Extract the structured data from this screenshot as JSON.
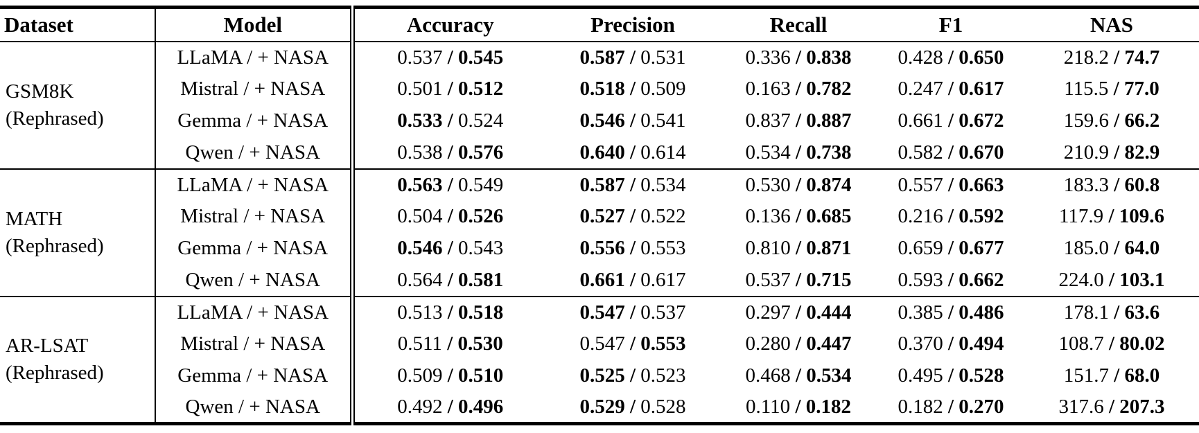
{
  "table": {
    "separator": "/",
    "columns": [
      {
        "label": "Dataset"
      },
      {
        "label": "Model"
      },
      {
        "label": "Accuracy"
      },
      {
        "label": "Precision"
      },
      {
        "label": "Recall"
      },
      {
        "label": "F1"
      },
      {
        "label": "NAS"
      }
    ],
    "groups": [
      {
        "dataset_line1": "GSM8K",
        "dataset_line2": "(Rephrased)",
        "rows": [
          {
            "model": "LLaMA / + NASA",
            "cells": [
              [
                "0.537",
                "0.545",
                "second"
              ],
              [
                "0.587",
                "0.531",
                "first"
              ],
              [
                "0.336",
                "0.838",
                "second"
              ],
              [
                "0.428",
                "0.650",
                "second"
              ],
              [
                "218.2",
                "74.7",
                "second"
              ]
            ]
          },
          {
            "model": "Mistral / + NASA",
            "cells": [
              [
                "0.501",
                "0.512",
                "second"
              ],
              [
                "0.518",
                "0.509",
                "first"
              ],
              [
                "0.163",
                "0.782",
                "second"
              ],
              [
                "0.247",
                "0.617",
                "second"
              ],
              [
                "115.5",
                "77.0",
                "second"
              ]
            ]
          },
          {
            "model": "Gemma / + NASA",
            "cells": [
              [
                "0.533",
                "0.524",
                "first"
              ],
              [
                "0.546",
                "0.541",
                "first"
              ],
              [
                "0.837",
                "0.887",
                "second"
              ],
              [
                "0.661",
                "0.672",
                "second"
              ],
              [
                "159.6",
                "66.2",
                "second"
              ]
            ]
          },
          {
            "model": "Qwen / + NASA",
            "cells": [
              [
                "0.538",
                "0.576",
                "second"
              ],
              [
                "0.640",
                "0.614",
                "first"
              ],
              [
                "0.534",
                "0.738",
                "second"
              ],
              [
                "0.582",
                "0.670",
                "second"
              ],
              [
                "210.9",
                "82.9",
                "second"
              ]
            ]
          }
        ]
      },
      {
        "dataset_line1": "MATH",
        "dataset_line2": "(Rephrased)",
        "rows": [
          {
            "model": "LLaMA / + NASA",
            "cells": [
              [
                "0.563",
                "0.549",
                "first"
              ],
              [
                "0.587",
                "0.534",
                "first"
              ],
              [
                "0.530",
                "0.874",
                "second"
              ],
              [
                "0.557",
                "0.663",
                "second"
              ],
              [
                "183.3",
                "60.8",
                "second"
              ]
            ]
          },
          {
            "model": "Mistral / + NASA",
            "cells": [
              [
                "0.504",
                "0.526",
                "second"
              ],
              [
                "0.527",
                "0.522",
                "first"
              ],
              [
                "0.136",
                "0.685",
                "second"
              ],
              [
                "0.216",
                "0.592",
                "second"
              ],
              [
                "117.9",
                "109.6",
                "second"
              ]
            ]
          },
          {
            "model": "Gemma / + NASA",
            "cells": [
              [
                "0.546",
                "0.543",
                "first"
              ],
              [
                "0.556",
                "0.553",
                "first"
              ],
              [
                "0.810",
                "0.871",
                "second"
              ],
              [
                "0.659",
                "0.677",
                "second"
              ],
              [
                "185.0",
                "64.0",
                "second"
              ]
            ]
          },
          {
            "model": "Qwen / + NASA",
            "cells": [
              [
                "0.564",
                "0.581",
                "second"
              ],
              [
                "0.661",
                "0.617",
                "first"
              ],
              [
                "0.537",
                "0.715",
                "second"
              ],
              [
                "0.593",
                "0.662",
                "second"
              ],
              [
                "224.0",
                "103.1",
                "second"
              ]
            ]
          }
        ]
      },
      {
        "dataset_line1": "AR-LSAT",
        "dataset_line2": "(Rephrased)",
        "rows": [
          {
            "model": "LLaMA / + NASA",
            "cells": [
              [
                "0.513",
                "0.518",
                "second"
              ],
              [
                "0.547",
                "0.537",
                "first"
              ],
              [
                "0.297",
                "0.444",
                "second"
              ],
              [
                "0.385",
                "0.486",
                "second"
              ],
              [
                "178.1",
                "63.6",
                "second"
              ]
            ]
          },
          {
            "model": "Mistral / + NASA",
            "cells": [
              [
                "0.511",
                "0.530",
                "second"
              ],
              [
                "0.547",
                "0.553",
                "second"
              ],
              [
                "0.280",
                "0.447",
                "second"
              ],
              [
                "0.370",
                "0.494",
                "second"
              ],
              [
                "108.7",
                "80.02",
                "second"
              ]
            ]
          },
          {
            "model": "Gemma / + NASA",
            "cells": [
              [
                "0.509",
                "0.510",
                "second"
              ],
              [
                "0.525",
                "0.523",
                "first"
              ],
              [
                "0.468",
                "0.534",
                "second"
              ],
              [
                "0.495",
                "0.528",
                "second"
              ],
              [
                "151.7",
                "68.0",
                "second"
              ]
            ]
          },
          {
            "model": "Qwen / + NASA",
            "cells": [
              [
                "0.492",
                "0.496",
                "second"
              ],
              [
                "0.529",
                "0.528",
                "first"
              ],
              [
                "0.110",
                "0.182",
                "second"
              ],
              [
                "0.182",
                "0.270",
                "second"
              ],
              [
                "317.6",
                "207.3",
                "second"
              ]
            ]
          }
        ]
      }
    ]
  }
}
